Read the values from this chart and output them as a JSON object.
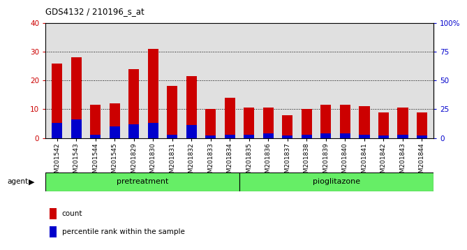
{
  "title": "GDS4132 / 210196_s_at",
  "samples": [
    "GSM201542",
    "GSM201543",
    "GSM201544",
    "GSM201545",
    "GSM201829",
    "GSM201830",
    "GSM201831",
    "GSM201832",
    "GSM201833",
    "GSM201834",
    "GSM201835",
    "GSM201836",
    "GSM201837",
    "GSM201838",
    "GSM201839",
    "GSM201840",
    "GSM201841",
    "GSM201842",
    "GSM201843",
    "GSM201844"
  ],
  "count_values": [
    26,
    28,
    11.5,
    12,
    24,
    31,
    18,
    21.5,
    10,
    14,
    10.5,
    10.5,
    8,
    10,
    11.5,
    11.5,
    11,
    9,
    10.5,
    9
  ],
  "percentile_values": [
    13,
    16,
    3,
    10,
    12,
    13,
    3,
    11,
    2,
    3,
    3,
    4,
    2,
    3,
    4,
    4,
    3,
    2,
    3,
    2
  ],
  "group1_label": "pretreatment",
  "group2_label": "pioglitazone",
  "group1_count": 10,
  "group2_count": 10,
  "bar_color_count": "#cc0000",
  "bar_color_pct": "#0000cc",
  "left_ylim": [
    0,
    40
  ],
  "right_ylim": [
    0,
    100
  ],
  "left_yticks": [
    0,
    10,
    20,
    30,
    40
  ],
  "right_yticks": [
    0,
    25,
    50,
    75,
    100
  ],
  "right_yticklabels": [
    "0",
    "25",
    "50",
    "75",
    "100%"
  ],
  "grid_color": "#000000",
  "bg_color": "#e0e0e0",
  "group_bg": "#66ee66",
  "agent_label": "agent",
  "legend_count_label": "count",
  "legend_pct_label": "percentile rank within the sample",
  "bar_width": 0.55
}
